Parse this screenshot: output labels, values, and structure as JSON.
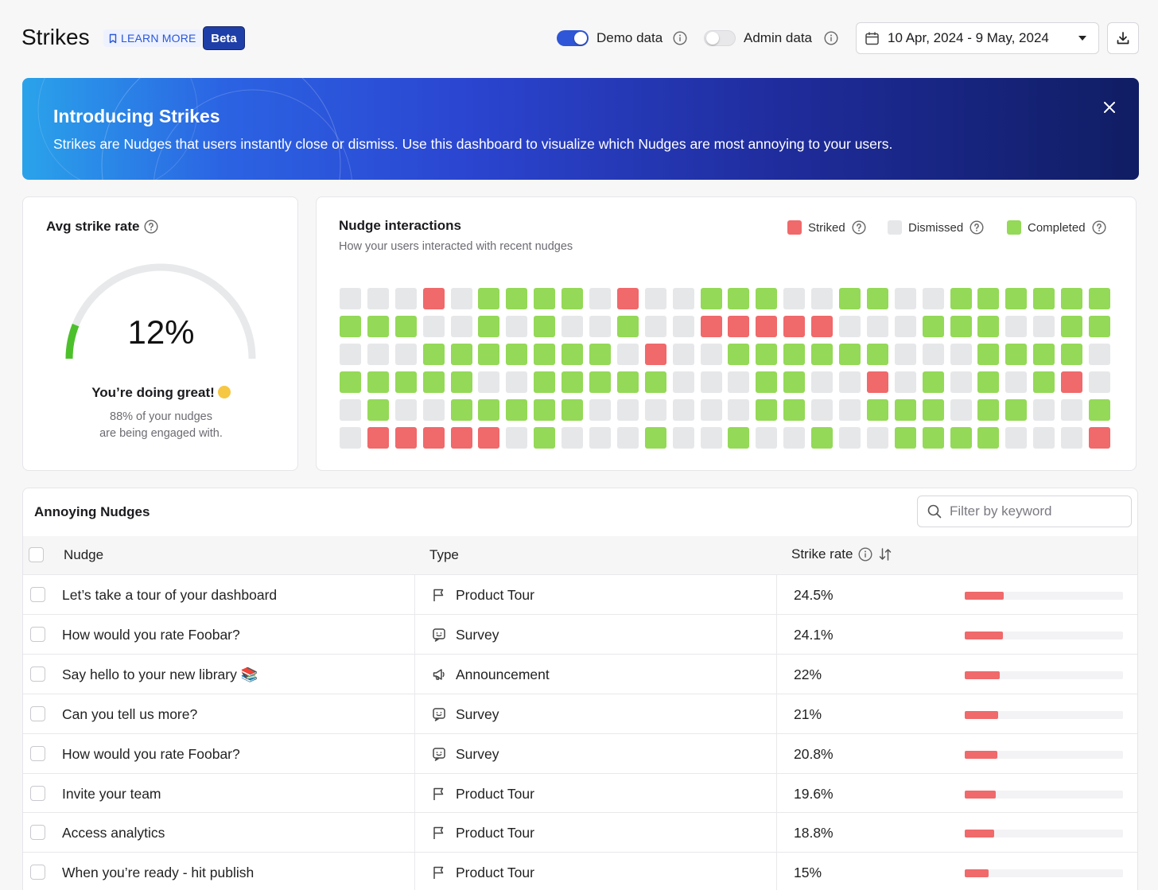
{
  "header": {
    "title": "Strikes",
    "learn_more": "LEARN MORE",
    "beta": "Beta",
    "demo_data_label": "Demo data",
    "demo_data_on": true,
    "admin_data_label": "Admin data",
    "admin_data_on": false,
    "date_range": "10 Apr, 2024 - 9 May, 2024"
  },
  "banner": {
    "title": "Introducing Strikes",
    "text": "Strikes are Nudges that users instantly close or dismiss. Use this dashboard to visualize which Nudges are most annoying to your users."
  },
  "avg_strike": {
    "title": "Avg strike rate",
    "value": "12%",
    "value_fraction": 0.12,
    "message": "You’re doing great!",
    "detail_line1": "88% of your nudges",
    "detail_line2": "are being engaged with."
  },
  "interactions": {
    "title": "Nudge interactions",
    "subtitle": "How your users interacted with recent nudges",
    "legend": [
      {
        "label": "Striked",
        "color": "#f0696b"
      },
      {
        "label": "Dismissed",
        "color": "#e6e7e9"
      },
      {
        "label": "Completed",
        "color": "#94d957"
      }
    ],
    "rows": [
      "DDDSDCCCCDSDDCCCDDCCDDCCCCCC",
      "CCCDDCDCDDCDDSSSSSDDDCCCDDCC",
      "DDDCCCCCCCDSDDCCCCCCDDDCCCCD",
      "CCCCCDDCCCCCDDDCCDDSDCDCDCSD",
      "DCDDCCCCCDDDDDDCCDDCCCDCCDDC",
      "DSSSSSDCDDDCDDCDDCDDCCCCDDDS"
    ]
  },
  "table": {
    "title": "Annoying Nudges",
    "filter_placeholder": "Filter by keyword",
    "columns": {
      "nudge": "Nudge",
      "type": "Type",
      "strike_rate": "Strike rate"
    },
    "rows": [
      {
        "name": "Let’s take a tour of your dashboard",
        "type": "Product Tour",
        "type_icon": "flag-icon",
        "rate": "24.5%",
        "rate_value": 24.5
      },
      {
        "name": "How would you rate Foobar?",
        "type": "Survey",
        "type_icon": "survey-icon",
        "rate": "24.1%",
        "rate_value": 24.1
      },
      {
        "name": "Say hello to your new library 📚",
        "type": "Announcement",
        "type_icon": "megaphone-icon",
        "rate": "22%",
        "rate_value": 22
      },
      {
        "name": "Can you tell us more?",
        "type": "Survey",
        "type_icon": "survey-icon",
        "rate": "21%",
        "rate_value": 21
      },
      {
        "name": "How would you rate Foobar?",
        "type": "Survey",
        "type_icon": "survey-icon",
        "rate": "20.8%",
        "rate_value": 20.8
      },
      {
        "name": "Invite your team",
        "type": "Product Tour",
        "type_icon": "flag-icon",
        "rate": "19.6%",
        "rate_value": 19.6
      },
      {
        "name": "Access analytics",
        "type": "Product Tour",
        "type_icon": "flag-icon",
        "rate": "18.8%",
        "rate_value": 18.8
      },
      {
        "name": "When you’re ready - hit publish",
        "type": "Product Tour",
        "type_icon": "flag-icon",
        "rate": "15%",
        "rate_value": 15
      }
    ]
  }
}
